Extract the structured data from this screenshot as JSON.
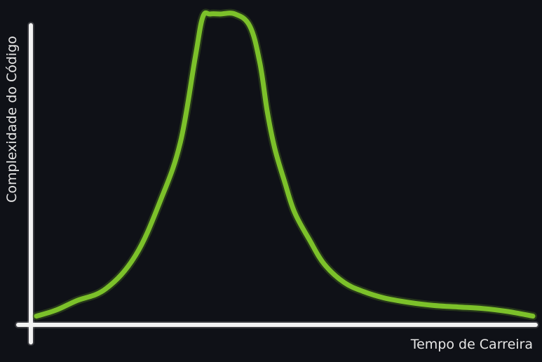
{
  "chart_data": {
    "type": "line",
    "title": "",
    "xlabel": "Tempo de Carreira",
    "ylabel": "Complexidade do Código",
    "xlim": [
      0,
      100
    ],
    "ylim": [
      0,
      100
    ],
    "grid": false,
    "legend": "none",
    "colors": {
      "background": "#0f1117",
      "axes": "#f2f2f2",
      "line": "#7cc12a"
    },
    "series": [
      {
        "x": [
          0,
          4,
          8,
          14,
          20,
          25,
          29,
          32,
          33.5,
          35,
          37,
          40,
          43,
          45,
          46.5,
          48,
          50,
          52,
          55,
          58,
          62,
          66,
          70,
          75,
          80,
          85,
          90,
          95,
          100
        ],
        "y": [
          1,
          3,
          6,
          10,
          21,
          39,
          58,
          86,
          99,
          100,
          100,
          100,
          96,
          84,
          68,
          56,
          45,
          35,
          26,
          18,
          12,
          9,
          7,
          5.5,
          4.5,
          4,
          3.5,
          2.5,
          1
        ]
      }
    ]
  }
}
